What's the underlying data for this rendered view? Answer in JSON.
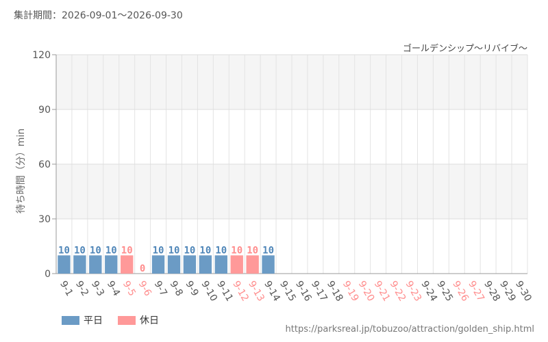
{
  "header": {
    "period": "集計期間：2026-09-01～2026-09-30"
  },
  "chart_data": {
    "type": "bar",
    "title": "ゴールデンシップ～リバイブ～",
    "ylabel": "待ち時間（分）min",
    "xlabel": "",
    "ylim": [
      0,
      120
    ],
    "yticks": [
      0,
      30,
      60,
      90,
      120
    ],
    "grid": true,
    "categories": [
      "9-1",
      "9-2",
      "9-3",
      "9-4",
      "9-5",
      "9-6",
      "9-7",
      "9-8",
      "9-9",
      "9-10",
      "9-11",
      "9-12",
      "9-13",
      "9-14",
      "9-15",
      "9-16",
      "9-17",
      "9-18",
      "9-19",
      "9-20",
      "9-21",
      "9-22",
      "9-23",
      "9-24",
      "9-25",
      "9-26",
      "9-27",
      "9-28",
      "9-29",
      "9-30"
    ],
    "values": [
      10,
      10,
      10,
      10,
      10,
      0,
      10,
      10,
      10,
      10,
      10,
      10,
      10,
      10,
      null,
      null,
      null,
      null,
      null,
      null,
      null,
      null,
      null,
      null,
      null,
      null,
      null,
      null,
      null,
      null
    ],
    "day_type": [
      "weekday",
      "weekday",
      "weekday",
      "weekday",
      "holiday",
      "holiday",
      "weekday",
      "weekday",
      "weekday",
      "weekday",
      "weekday",
      "holiday",
      "holiday",
      "weekday",
      "weekday",
      "weekday",
      "weekday",
      "weekday",
      "holiday",
      "holiday",
      "holiday",
      "holiday",
      "holiday",
      "weekday",
      "weekday",
      "holiday",
      "holiday",
      "weekday",
      "weekday",
      "weekday"
    ],
    "legend": [
      {
        "key": "weekday",
        "label": "平日",
        "color": "#6b9bc5"
      },
      {
        "key": "holiday",
        "label": "休日",
        "color": "#ff9999"
      }
    ],
    "label_colors": {
      "weekday": "#555555",
      "holiday": "#ff8c8c"
    },
    "value_label_colors": {
      "weekday": "#4f86b8",
      "holiday": "#ff8c8c"
    },
    "legend_position": "bottom-left"
  },
  "footer": {
    "source": "https://parksreal.jp/tobuzoo/attraction/golden_ship.html"
  }
}
